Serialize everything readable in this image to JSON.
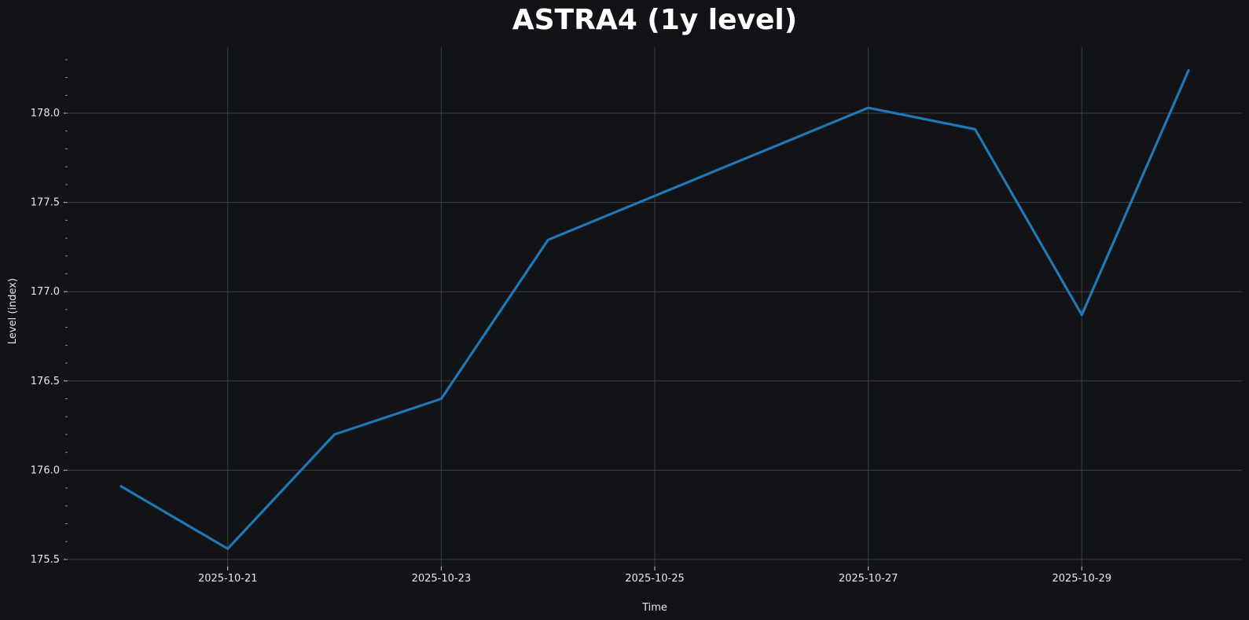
{
  "chart_data": {
    "type": "line",
    "title": "ASTRA4 (1y level)",
    "xlabel": "Time",
    "ylabel": "Level (index)",
    "x": [
      "2025-10-20",
      "2025-10-21",
      "2025-10-22",
      "2025-10-23",
      "2025-10-24",
      "2025-10-27",
      "2025-10-28",
      "2025-10-29",
      "2025-10-30"
    ],
    "series": [
      {
        "values": [
          175.91,
          175.56,
          176.2,
          176.4,
          177.29,
          178.03,
          177.91,
          176.87,
          178.24
        ],
        "color": "#1f77b4"
      }
    ],
    "x_ticks": [
      "2025-10-21",
      "2025-10-23",
      "2025-10-25",
      "2025-10-27",
      "2025-10-29"
    ],
    "y_ticks": [
      "175.5",
      "176.0",
      "176.5",
      "177.0",
      "177.5",
      "178.0"
    ],
    "xlim": [
      "2025-10-19.5",
      "2025-10-30.5"
    ],
    "ylim": [
      175.46,
      178.37
    ],
    "grid": true,
    "background": "#111317",
    "grid_color": "#3a3d42"
  }
}
